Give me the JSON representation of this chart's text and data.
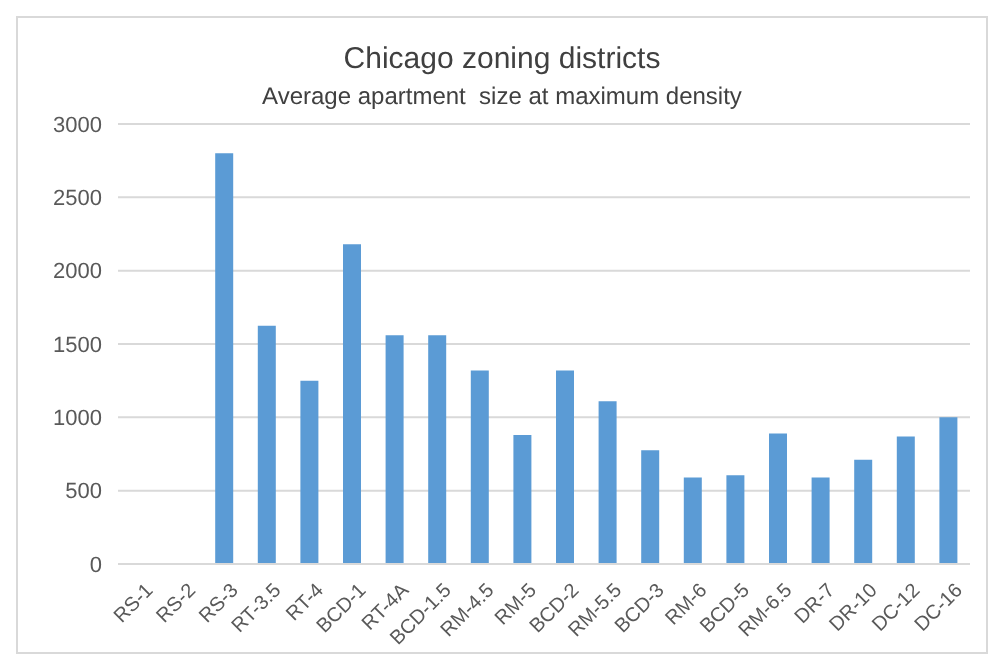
{
  "chart_data": {
    "type": "bar",
    "title": "Chicago zoning districts",
    "subtitle": "Average apartment  size at maximum density",
    "categories": [
      "RS-1",
      "RS-2",
      "RS-3",
      "RT-3.5",
      "RT-4",
      "BCD-1",
      "RT-4A",
      "BCD-1.5",
      "RM-4.5",
      "RM-5",
      "BCD-2",
      "RM-5.5",
      "BCD-3",
      "RM-6",
      "BCD-5",
      "RM-6.5",
      "DR-7",
      "DR-10",
      "DC-12",
      "DC-16"
    ],
    "values": [
      null,
      null,
      2800,
      1625,
      1250,
      2180,
      1560,
      1560,
      1320,
      880,
      1320,
      1110,
      775,
      590,
      605,
      890,
      590,
      710,
      870,
      1000
    ],
    "color": "#5b9bd5",
    "ylim": [
      0,
      3000
    ],
    "yticks": [
      0,
      500,
      1000,
      1500,
      2000,
      2500,
      3000
    ],
    "grid": "y"
  }
}
